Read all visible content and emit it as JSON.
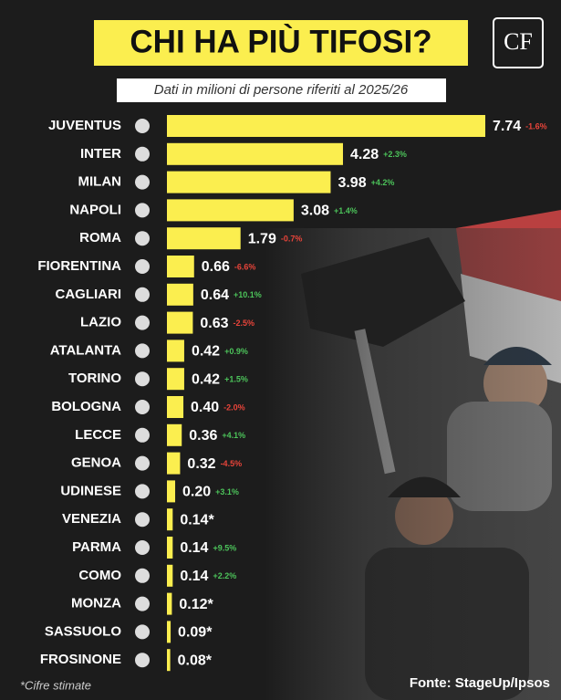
{
  "chart_data": {
    "type": "bar",
    "orientation": "horizontal",
    "title": "CHI HA PIÙ TIFOSI?",
    "subtitle": "Dati in milioni di persone riferiti al 2025/26",
    "logo": "CF",
    "footnote": "*Cifre stimate",
    "source": "Fonte: StageUp/Ipsos",
    "color": "#fbee4f",
    "categories": [
      "JUVENTUS",
      "INTER",
      "MILAN",
      "NAPOLI",
      "ROMA",
      "FIORENTINA",
      "CAGLIARI",
      "LAZIO",
      "ATALANTA",
      "TORINO",
      "BOLOGNA",
      "LECCE",
      "GENOA",
      "UDINESE",
      "VENEZIA",
      "PARMA",
      "COMO",
      "MONZA",
      "SASSUOLO",
      "FROSINONE"
    ],
    "values": [
      7.74,
      4.28,
      3.98,
      3.08,
      1.79,
      0.66,
      0.64,
      0.63,
      0.42,
      0.42,
      0.4,
      0.36,
      0.32,
      0.2,
      0.14,
      0.14,
      0.14,
      0.12,
      0.09,
      0.08
    ],
    "value_labels": [
      "7.74",
      "4.28",
      "3.98",
      "3.08",
      "1.79",
      "0.66",
      "0.64",
      "0.63",
      "0.42",
      "0.42",
      "0.40",
      "0.36",
      "0.32",
      "0.20",
      "0.14*",
      "0.14",
      "0.14",
      "0.12*",
      "0.09*",
      "0.08*"
    ],
    "changes": [
      "-1.6%",
      "+2.3%",
      "+4.2%",
      "+1.4%",
      "-0.7%",
      "-6.6%",
      "+10.1%",
      "-2.5%",
      "+0.9%",
      "+1.5%",
      "-2.0%",
      "+4.1%",
      "-4.5%",
      "+3.1%",
      null,
      "+9.5%",
      "+2.2%",
      null,
      null,
      null
    ]
  }
}
